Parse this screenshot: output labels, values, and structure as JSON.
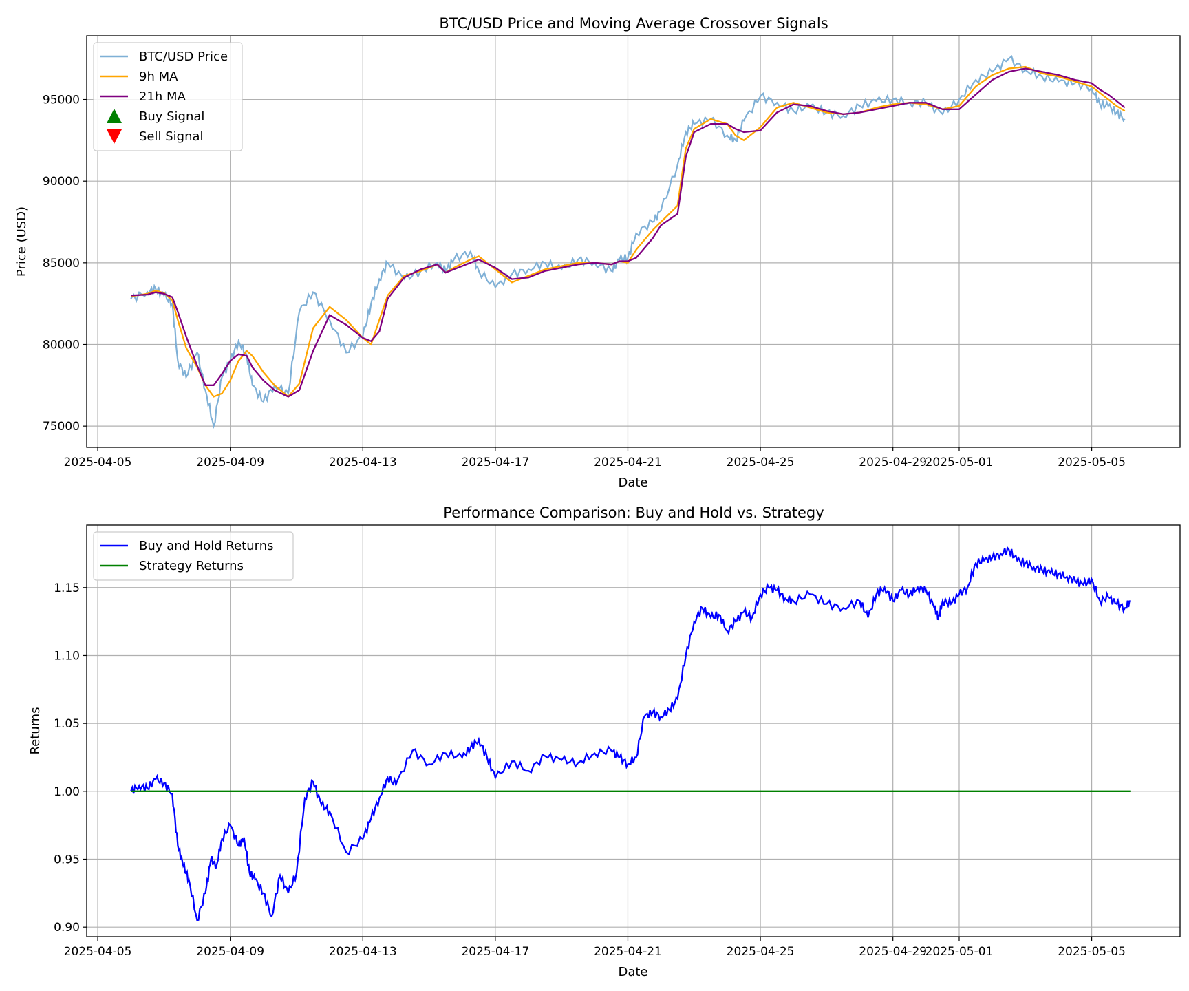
{
  "chart_data": [
    {
      "type": "line",
      "title": "BTC/USD Price and Moving Average Crossover Signals",
      "xlabel": "Date",
      "ylabel": "Price (USD)",
      "x_range": [
        "2025-04-04 16:00",
        "2025-05-07 16:00"
      ],
      "ylim": [
        73700,
        98900
      ],
      "grid": true,
      "legend_position": "top-left",
      "x_ticks": [
        "2025-04-05",
        "2025-04-09",
        "2025-04-13",
        "2025-04-17",
        "2025-04-21",
        "2025-04-25",
        "2025-04-29",
        "2025-05-01",
        "2025-05-05"
      ],
      "y_ticks": [
        "75000",
        "80000",
        "85000",
        "90000",
        "95000"
      ],
      "legend": [
        {
          "label": "BTC/USD Price",
          "kind": "line",
          "color": "#7fb0d6"
        },
        {
          "label": "9h MA",
          "kind": "line",
          "color": "#ffa500"
        },
        {
          "label": "21h MA",
          "kind": "line",
          "color": "#800080"
        },
        {
          "label": "Buy Signal",
          "kind": "marker-up",
          "color": "#008000"
        },
        {
          "label": "Sell Signal",
          "kind": "marker-down",
          "color": "#ff0000"
        }
      ],
      "series_anchors": {
        "x": [
          "2025-04-06 00:00",
          "2025-04-06 12:00",
          "2025-04-06 18:00",
          "2025-04-07 00:00",
          "2025-04-07 06:00",
          "2025-04-07 10:00",
          "2025-04-07 16:00",
          "2025-04-08 00:00",
          "2025-04-08 06:00",
          "2025-04-08 12:00",
          "2025-04-08 18:00",
          "2025-04-09 00:00",
          "2025-04-09 06:00",
          "2025-04-09 12:00",
          "2025-04-09 16:00",
          "2025-04-10 00:00",
          "2025-04-10 08:00",
          "2025-04-10 18:00",
          "2025-04-11 02:00",
          "2025-04-11 12:00",
          "2025-04-12 00:00",
          "2025-04-12 12:00",
          "2025-04-13 00:00",
          "2025-04-13 06:00",
          "2025-04-13 12:00",
          "2025-04-13 18:00",
          "2025-04-14 06:00",
          "2025-04-14 18:00",
          "2025-04-15 06:00",
          "2025-04-15 12:00",
          "2025-04-15 18:00",
          "2025-04-16 06:00",
          "2025-04-16 12:00",
          "2025-04-17 00:00",
          "2025-04-17 12:00",
          "2025-04-18 00:00",
          "2025-04-18 12:00",
          "2025-04-19 00:00",
          "2025-04-19 12:00",
          "2025-04-20 00:00",
          "2025-04-20 12:00",
          "2025-04-20 18:00",
          "2025-04-21 00:00",
          "2025-04-21 06:00",
          "2025-04-21 18:00",
          "2025-04-22 00:00",
          "2025-04-22 12:00",
          "2025-04-22 18:00",
          "2025-04-23 00:00",
          "2025-04-23 12:00",
          "2025-04-24 00:00",
          "2025-04-24 06:00",
          "2025-04-24 12:00",
          "2025-04-25 00:00",
          "2025-04-25 12:00",
          "2025-04-26 00:00",
          "2025-04-26 12:00",
          "2025-04-27 00:00",
          "2025-04-27 12:00",
          "2025-04-28 00:00",
          "2025-04-28 12:00",
          "2025-04-29 00:00",
          "2025-04-29 12:00",
          "2025-04-30 00:00",
          "2025-04-30 12:00",
          "2025-05-01 00:00",
          "2025-05-01 12:00",
          "2025-05-02 00:00",
          "2025-05-02 12:00",
          "2025-05-03 00:00",
          "2025-05-03 12:00",
          "2025-05-04 00:00",
          "2025-05-04 12:00",
          "2025-05-05 00:00",
          "2025-05-05 06:00",
          "2025-05-05 12:00",
          "2025-05-05 18:00",
          "2025-05-06 00:00"
        ],
        "price": [
          82800,
          83200,
          83400,
          83000,
          82500,
          79000,
          78000,
          79500,
          77200,
          75000,
          78000,
          79000,
          80200,
          79300,
          77500,
          76500,
          77500,
          77000,
          82000,
          83200,
          81500,
          79500,
          80500,
          82500,
          84000,
          85000,
          84000,
          84500,
          85000,
          84500,
          85200,
          85700,
          84500,
          83500,
          84300,
          84600,
          85000,
          84600,
          85200,
          85000,
          84500,
          85200,
          85300,
          86800,
          87500,
          88200,
          91000,
          93000,
          93500,
          93800,
          92800,
          92500,
          93700,
          95200,
          94800,
          94300,
          94600,
          94200,
          94000,
          94600,
          94900,
          95000,
          94800,
          94800,
          94100,
          95000,
          96200,
          96700,
          97500,
          96800,
          96400,
          96100,
          96000,
          95700,
          94700,
          94600,
          94200,
          93800
        ],
        "ma9": [
          82950,
          83100,
          83300,
          83150,
          82700,
          81500,
          79800,
          78600,
          77500,
          76800,
          77000,
          77800,
          79000,
          79600,
          79300,
          78300,
          77500,
          76800,
          77600,
          81000,
          82300,
          81500,
          80400,
          80000,
          81500,
          83000,
          84200,
          84500,
          84900,
          84400,
          84700,
          85200,
          85400,
          84600,
          83800,
          84200,
          84600,
          84800,
          85000,
          85000,
          84900,
          85100,
          85000,
          85800,
          87000,
          87500,
          88500,
          92000,
          93200,
          93800,
          93500,
          92800,
          92500,
          93300,
          94500,
          94800,
          94500,
          94200,
          94100,
          94200,
          94500,
          94700,
          94800,
          94700,
          94400,
          94600,
          95800,
          96500,
          96900,
          97000,
          96600,
          96400,
          96100,
          95800,
          95400,
          95000,
          94600,
          94300
        ],
        "ma21": [
          83000,
          83050,
          83200,
          83100,
          82900,
          82000,
          80500,
          78700,
          77500,
          77500,
          78200,
          79000,
          79400,
          79300,
          78600,
          77800,
          77200,
          76800,
          77200,
          79600,
          81800,
          81200,
          80400,
          80200,
          80800,
          82800,
          84100,
          84600,
          84900,
          84400,
          84600,
          85000,
          85200,
          84700,
          84000,
          84100,
          84500,
          84700,
          84900,
          85000,
          84900,
          85100,
          85100,
          85300,
          86500,
          87300,
          88000,
          91500,
          93000,
          93500,
          93500,
          93200,
          93000,
          93100,
          94200,
          94700,
          94600,
          94300,
          94100,
          94200,
          94400,
          94600,
          94800,
          94800,
          94400,
          94400,
          95300,
          96200,
          96700,
          96900,
          96700,
          96500,
          96200,
          96000,
          95600,
          95300,
          94900,
          94500
        ]
      }
    },
    {
      "type": "line",
      "title": "Performance Comparison: Buy and Hold vs. Strategy",
      "xlabel": "Date",
      "ylabel": "Returns",
      "x_range": [
        "2025-04-04 16:00",
        "2025-05-07 16:00"
      ],
      "ylim": [
        0.893,
        1.196
      ],
      "grid": true,
      "legend_position": "top-left",
      "x_ticks": [
        "2025-04-05",
        "2025-04-09",
        "2025-04-13",
        "2025-04-17",
        "2025-04-21",
        "2025-04-25",
        "2025-04-29",
        "2025-05-01",
        "2025-05-05"
      ],
      "y_ticks": [
        "0.90",
        "0.95",
        "1.00",
        "1.05",
        "1.10",
        "1.15"
      ],
      "legend": [
        {
          "label": "Buy and Hold Returns",
          "kind": "line",
          "color": "#0000ff"
        },
        {
          "label": "Strategy Returns",
          "kind": "line",
          "color": "#008000"
        }
      ],
      "series": [
        {
          "name": "Buy and Hold Returns",
          "color": "#0000ff",
          "x": [
            "2025-04-06 00:00",
            "2025-04-06 06:00",
            "2025-04-06 12:00",
            "2025-04-06 18:00",
            "2025-04-07 00:00",
            "2025-04-07 06:00",
            "2025-04-07 10:00",
            "2025-04-07 14:00",
            "2025-04-07 18:00",
            "2025-04-08 00:00",
            "2025-04-08 06:00",
            "2025-04-08 10:00",
            "2025-04-08 14:00",
            "2025-04-08 18:00",
            "2025-04-09 00:00",
            "2025-04-09 06:00",
            "2025-04-09 10:00",
            "2025-04-09 14:00",
            "2025-04-09 18:00",
            "2025-04-10 00:00",
            "2025-04-10 06:00",
            "2025-04-10 12:00",
            "2025-04-10 18:00",
            "2025-04-11 00:00",
            "2025-04-11 06:00",
            "2025-04-11 12:00",
            "2025-04-11 18:00",
            "2025-04-12 00:00",
            "2025-04-12 12:00",
            "2025-04-13 00:00",
            "2025-04-13 06:00",
            "2025-04-13 12:00",
            "2025-04-13 18:00",
            "2025-04-14 00:00",
            "2025-04-14 12:00",
            "2025-04-15 00:00",
            "2025-04-15 12:00",
            "2025-04-16 00:00",
            "2025-04-16 06:00",
            "2025-04-16 12:00",
            "2025-04-16 18:00",
            "2025-04-17 00:00",
            "2025-04-17 12:00",
            "2025-04-18 00:00",
            "2025-04-18 12:00",
            "2025-04-19 00:00",
            "2025-04-19 12:00",
            "2025-04-20 00:00",
            "2025-04-20 12:00",
            "2025-04-20 18:00",
            "2025-04-21 00:00",
            "2025-04-21 06:00",
            "2025-04-21 12:00",
            "2025-04-21 18:00",
            "2025-04-22 00:00",
            "2025-04-22 06:00",
            "2025-04-22 12:00",
            "2025-04-22 18:00",
            "2025-04-23 00:00",
            "2025-04-23 06:00",
            "2025-04-23 12:00",
            "2025-04-23 18:00",
            "2025-04-24 00:00",
            "2025-04-24 06:00",
            "2025-04-24 12:00",
            "2025-04-24 18:00",
            "2025-04-25 00:00",
            "2025-04-25 06:00",
            "2025-04-25 12:00",
            "2025-04-25 18:00",
            "2025-04-26 00:00",
            "2025-04-26 12:00",
            "2025-04-27 00:00",
            "2025-04-27 12:00",
            "2025-04-28 00:00",
            "2025-04-28 06:00",
            "2025-04-28 12:00",
            "2025-04-28 18:00",
            "2025-04-29 00:00",
            "2025-04-29 06:00",
            "2025-04-29 12:00",
            "2025-04-29 18:00",
            "2025-04-30 00:00",
            "2025-04-30 06:00",
            "2025-04-30 09:00",
            "2025-04-30 12:00",
            "2025-04-30 18:00",
            "2025-05-01 00:00",
            "2025-05-01 06:00",
            "2025-05-01 12:00",
            "2025-05-01 18:00",
            "2025-05-02 00:00",
            "2025-05-02 06:00",
            "2025-05-02 12:00",
            "2025-05-02 18:00",
            "2025-05-03 00:00",
            "2025-05-03 06:00",
            "2025-05-03 12:00",
            "2025-05-03 18:00",
            "2025-05-04 00:00",
            "2025-05-04 06:00",
            "2025-05-04 12:00",
            "2025-05-04 18:00",
            "2025-05-05 00:00",
            "2025-05-05 06:00",
            "2025-05-05 12:00",
            "2025-05-05 18:00",
            "2025-05-06 00:00",
            "2025-05-06 04:00"
          ],
          "values": [
            1.0,
            1.004,
            1.002,
            1.009,
            1.006,
            0.998,
            0.96,
            0.945,
            0.935,
            0.905,
            0.925,
            0.95,
            0.945,
            0.965,
            0.975,
            0.96,
            0.966,
            0.94,
            0.935,
            0.925,
            0.908,
            0.938,
            0.925,
            0.94,
            0.995,
            1.007,
            0.99,
            0.985,
            0.955,
            0.965,
            0.98,
            0.995,
            1.01,
            1.005,
            1.03,
            1.02,
            1.028,
            1.025,
            1.032,
            1.038,
            1.025,
            1.01,
            1.022,
            1.015,
            1.026,
            1.023,
            1.021,
            1.028,
            1.03,
            1.025,
            1.02,
            1.025,
            1.055,
            1.058,
            1.055,
            1.06,
            1.068,
            1.1,
            1.125,
            1.135,
            1.128,
            1.13,
            1.118,
            1.125,
            1.132,
            1.128,
            1.145,
            1.15,
            1.148,
            1.142,
            1.14,
            1.145,
            1.138,
            1.135,
            1.14,
            1.128,
            1.145,
            1.15,
            1.14,
            1.148,
            1.145,
            1.15,
            1.148,
            1.135,
            1.128,
            1.14,
            1.138,
            1.145,
            1.15,
            1.168,
            1.17,
            1.172,
            1.175,
            1.178,
            1.17,
            1.168,
            1.165,
            1.163,
            1.161,
            1.16,
            1.158,
            1.155,
            1.152,
            1.156,
            1.14,
            1.143,
            1.138,
            1.135,
            1.14
          ]
        },
        {
          "name": "Strategy Returns",
          "color": "#008000",
          "x": [
            "2025-04-06 00:00",
            "2025-05-06 04:00"
          ],
          "values": [
            1.0,
            1.0
          ]
        }
      ]
    }
  ]
}
